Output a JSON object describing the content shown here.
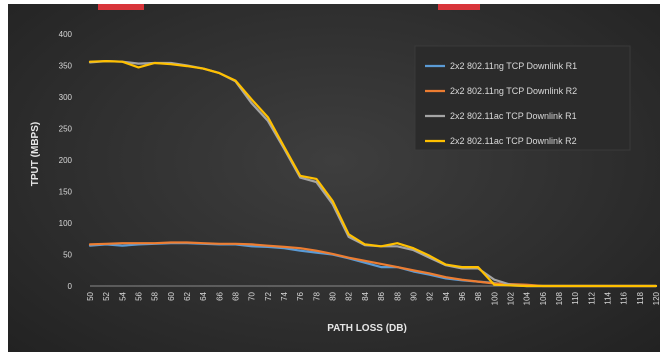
{
  "chart_data": {
    "type": "line",
    "title": "",
    "xlabel": "PATH LOSS (DB)",
    "ylabel": "TPUT (MBPS)",
    "ylim": [
      0,
      400
    ],
    "yticks": [
      0,
      50,
      100,
      150,
      200,
      250,
      300,
      350,
      400
    ],
    "x": [
      50,
      52,
      54,
      56,
      58,
      60,
      62,
      64,
      66,
      68,
      70,
      72,
      74,
      76,
      78,
      80,
      82,
      84,
      86,
      88,
      90,
      92,
      94,
      96,
      98,
      100,
      102,
      104,
      106,
      108,
      110,
      112,
      114,
      116,
      118,
      120
    ],
    "grid": false,
    "legend": "top-right",
    "series": [
      {
        "name": "2x2 802.11ng TCP Downlink R1",
        "color": "#5b9bd5",
        "values": [
          64,
          66,
          64,
          66,
          67,
          68,
          68,
          67,
          66,
          66,
          63,
          62,
          60,
          56,
          53,
          50,
          44,
          37,
          30,
          30,
          23,
          18,
          12,
          9,
          7,
          5,
          1,
          0,
          0,
          0,
          0,
          0,
          0,
          0,
          0,
          0
        ]
      },
      {
        "name": "2x2 802.11ng TCP Downlink R2",
        "color": "#ed7d31",
        "values": [
          66,
          67,
          68,
          68,
          68,
          69,
          69,
          68,
          67,
          67,
          66,
          64,
          62,
          60,
          56,
          51,
          45,
          40,
          35,
          30,
          25,
          20,
          14,
          10,
          7,
          4,
          3,
          2,
          0,
          0,
          0,
          0,
          0,
          0,
          0,
          0
        ]
      },
      {
        "name": "2x2 802.11ac TCP Downlink R1",
        "color": "#a5a5a5",
        "values": [
          355,
          357,
          356,
          353,
          354,
          354,
          350,
          345,
          338,
          325,
          290,
          262,
          218,
          172,
          165,
          130,
          78,
          65,
          63,
          63,
          57,
          45,
          33,
          28,
          28,
          10,
          2,
          0,
          0,
          0,
          0,
          0,
          0,
          0,
          0,
          0
        ]
      },
      {
        "name": "2x2 802.11ac TCP Downlink R2",
        "color": "#ffc000",
        "values": [
          356,
          357,
          356,
          347,
          354,
          352,
          349,
          345,
          338,
          326,
          296,
          268,
          221,
          175,
          170,
          135,
          82,
          66,
          63,
          68,
          60,
          48,
          34,
          30,
          30,
          2,
          1,
          0,
          0,
          0,
          0,
          0,
          0,
          0,
          0,
          0
        ]
      }
    ]
  }
}
